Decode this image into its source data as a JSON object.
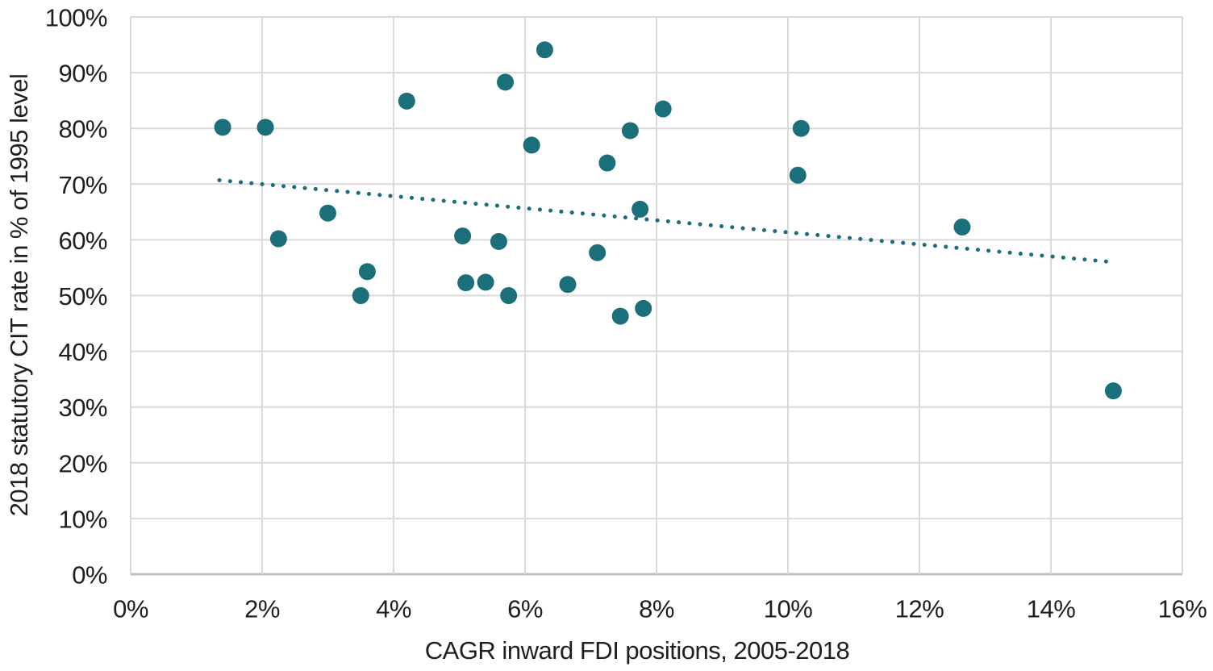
{
  "figure": {
    "background": "#FFFFFF",
    "colors": {
      "marker": "#1A6F7A",
      "trendline": "#1A6F7A",
      "gridline": "#D9D9D9",
      "axis_line": "#C0C0C0",
      "text": "#1F1F1F"
    }
  },
  "chart_data": {
    "type": "scatter",
    "title": "",
    "xlabel": "CAGR inward FDI positions, 2005-2018",
    "ylabel": "2018 statutory CIT rate in % of 1995 level",
    "xlim": [
      0,
      16
    ],
    "ylim": [
      0,
      100
    ],
    "x_unit": "percent",
    "y_unit": "percent",
    "grid": true,
    "legend": "none",
    "x_tick_labels": [
      "0%",
      "2%",
      "4%",
      "6%",
      "8%",
      "10%",
      "12%",
      "14%",
      "16%"
    ],
    "x_tick_values": [
      0,
      2,
      4,
      6,
      8,
      10,
      12,
      14,
      16
    ],
    "y_tick_labels": [
      "0%",
      "10%",
      "20%",
      "30%",
      "40%",
      "50%",
      "60%",
      "70%",
      "80%",
      "90%",
      "100%"
    ],
    "y_tick_values": [
      0,
      10,
      20,
      30,
      40,
      50,
      60,
      70,
      80,
      90,
      100
    ],
    "points": [
      {
        "x": 1.4,
        "y": 80.2
      },
      {
        "x": 2.05,
        "y": 80.2
      },
      {
        "x": 2.25,
        "y": 60.2
      },
      {
        "x": 3.0,
        "y": 64.8
      },
      {
        "x": 3.5,
        "y": 50.0
      },
      {
        "x": 3.6,
        "y": 54.3
      },
      {
        "x": 4.2,
        "y": 84.9
      },
      {
        "x": 5.05,
        "y": 60.7
      },
      {
        "x": 5.1,
        "y": 52.3
      },
      {
        "x": 5.4,
        "y": 52.4
      },
      {
        "x": 5.6,
        "y": 59.7
      },
      {
        "x": 5.7,
        "y": 88.3
      },
      {
        "x": 5.75,
        "y": 50.0
      },
      {
        "x": 6.1,
        "y": 77.0
      },
      {
        "x": 6.3,
        "y": 94.1
      },
      {
        "x": 6.65,
        "y": 52.0
      },
      {
        "x": 7.1,
        "y": 57.7
      },
      {
        "x": 7.25,
        "y": 73.8
      },
      {
        "x": 7.45,
        "y": 46.3
      },
      {
        "x": 7.6,
        "y": 79.6
      },
      {
        "x": 7.75,
        "y": 65.5
      },
      {
        "x": 7.8,
        "y": 47.7
      },
      {
        "x": 8.1,
        "y": 83.5
      },
      {
        "x": 10.15,
        "y": 71.6
      },
      {
        "x": 10.2,
        "y": 80.0
      },
      {
        "x": 12.65,
        "y": 62.3
      },
      {
        "x": 14.95,
        "y": 32.9
      }
    ],
    "trendline": {
      "style": "dotted",
      "x1": 1.35,
      "y1": 70.7,
      "x2": 14.95,
      "y2": 56.0
    }
  }
}
